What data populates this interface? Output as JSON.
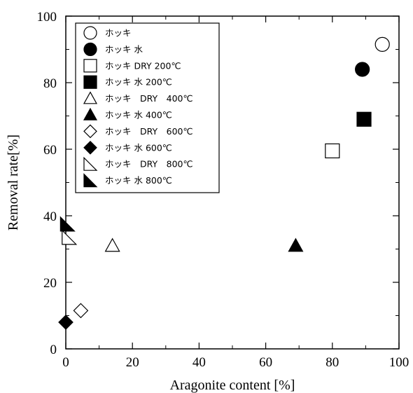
{
  "chart_data": {
    "type": "scatter",
    "xlabel": "Aragonite content [%]",
    "ylabel": "Removal rate[%]",
    "xlim": [
      0,
      100
    ],
    "ylim": [
      0,
      100
    ],
    "xticks": [
      0,
      20,
      40,
      60,
      80,
      100
    ],
    "yticks": [
      0,
      20,
      40,
      60,
      80,
      100
    ],
    "x_tick_labels": [
      "0",
      "20",
      "40",
      "60",
      "80",
      "100"
    ],
    "y_tick_labels": [
      "0",
      "20",
      "40",
      "60",
      "80",
      "100"
    ],
    "grid": false,
    "legend_position": "top-left",
    "series": [
      {
        "name": "ホッキ",
        "marker": "circle",
        "filled": false,
        "x": [
          95
        ],
        "y": [
          91.5
        ]
      },
      {
        "name": "ホッキ 水",
        "marker": "circle",
        "filled": true,
        "x": [
          89
        ],
        "y": [
          84
        ]
      },
      {
        "name": "ホッキ DRY 200℃",
        "marker": "square",
        "filled": false,
        "x": [
          80
        ],
        "y": [
          59.5
        ]
      },
      {
        "name": "ホッキ 水 200℃",
        "marker": "square",
        "filled": true,
        "x": [
          89.5
        ],
        "y": [
          69
        ]
      },
      {
        "name": "ホッキ　DRY　400℃",
        "marker": "triangle",
        "filled": false,
        "x": [
          14
        ],
        "y": [
          31
        ]
      },
      {
        "name": "ホッキ 水 400℃",
        "marker": "triangle",
        "filled": true,
        "x": [
          69
        ],
        "y": [
          31
        ]
      },
      {
        "name": "ホッキ　DRY　600℃",
        "marker": "diamond",
        "filled": false,
        "x": [
          4.5
        ],
        "y": [
          11.5
        ]
      },
      {
        "name": "ホッキ 水 600℃",
        "marker": "diamond",
        "filled": true,
        "x": [
          0
        ],
        "y": [
          8
        ]
      },
      {
        "name": "ホッキ　DRY　800℃",
        "marker": "right-triangle",
        "filled": false,
        "x": [
          1
        ],
        "y": [
          33.5
        ]
      },
      {
        "name": "ホッキ 水 800℃",
        "marker": "right-triangle",
        "filled": true,
        "x": [
          0.5
        ],
        "y": [
          37.5
        ]
      }
    ]
  }
}
